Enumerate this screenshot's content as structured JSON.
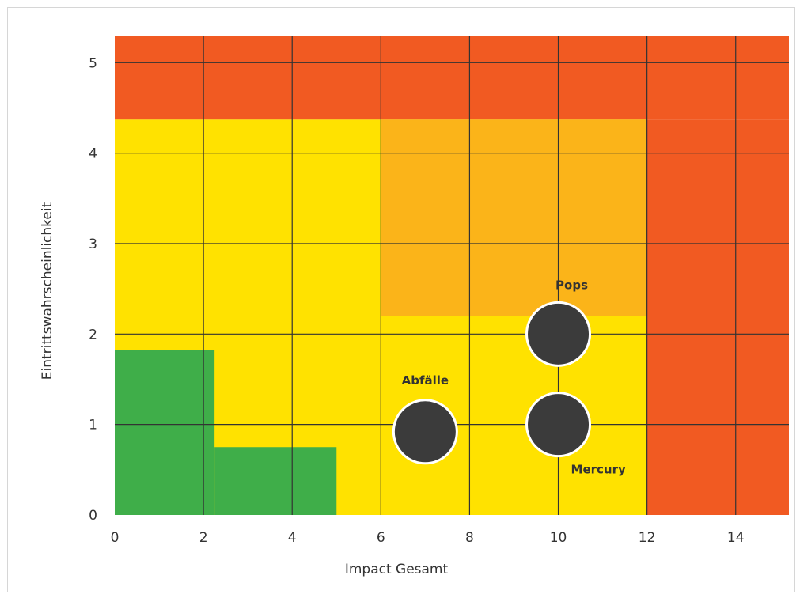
{
  "chart_data": {
    "type": "scatter",
    "xlabel": "Impact Gesamt",
    "ylabel": "Eintrittswahrscheinlichkeit",
    "xlim": [
      0,
      15.2
    ],
    "ylim": [
      0,
      5.3
    ],
    "x_ticks": [
      0,
      2,
      4,
      6,
      8,
      10,
      12,
      14
    ],
    "y_ticks": [
      0,
      1,
      2,
      3,
      4,
      5
    ],
    "grid": true,
    "zones": [
      {
        "name": "red",
        "color": "#f15a22",
        "x": [
          0,
          15.2
        ],
        "y": [
          4.37,
          5.3
        ]
      },
      {
        "name": "red",
        "color": "#f15a22",
        "x": [
          12,
          15.2
        ],
        "y": [
          0,
          4.37
        ]
      },
      {
        "name": "yellow",
        "color": "#ffe200",
        "x": [
          0,
          12
        ],
        "y": [
          0,
          4.37
        ]
      },
      {
        "name": "orange",
        "color": "#fbb419",
        "x": [
          6,
          12
        ],
        "y": [
          2.2,
          4.37
        ]
      },
      {
        "name": "green",
        "color": "#3fae49",
        "x": [
          0,
          2.25
        ],
        "y": [
          0,
          1.82
        ]
      },
      {
        "name": "green",
        "color": "#3fae49",
        "x": [
          2.25,
          5
        ],
        "y": [
          0,
          0.75
        ]
      }
    ],
    "points": [
      {
        "label": "Pops",
        "x": 10,
        "y": 2.0,
        "label_pos": "above"
      },
      {
        "label": "Abfälle",
        "x": 7,
        "y": 0.92,
        "label_pos": "above"
      },
      {
        "label": "Mercury",
        "x": 10,
        "y": 1.0,
        "label_pos": "below-right"
      }
    ],
    "colors": {
      "point": "#3b3b3b",
      "point_outline": "#ffffff",
      "grid": "#333333"
    }
  }
}
